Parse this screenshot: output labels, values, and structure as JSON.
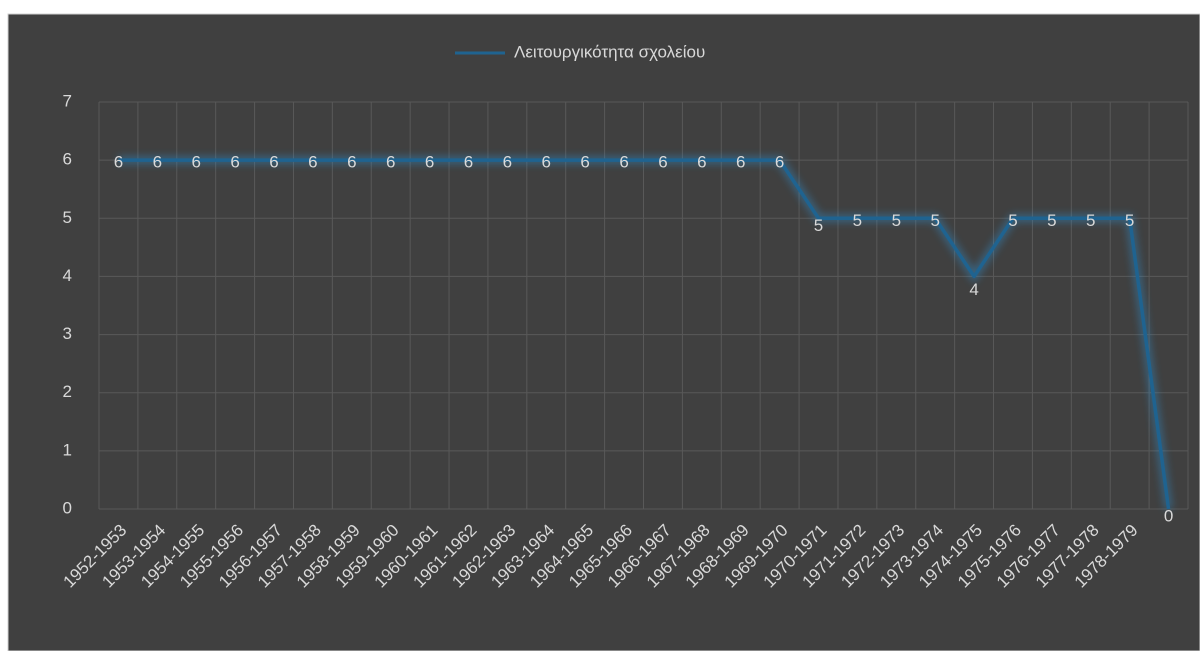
{
  "chart_data": {
    "type": "line",
    "categories": [
      "1952-1953",
      "1953-1954",
      "1954-1955",
      "1955-1956",
      "1956-1957",
      "1957-1958",
      "1958-1959",
      "1959-1960",
      "1960-1961",
      "1961-1962",
      "1962-1963",
      "1963-1964",
      "1964-1965",
      "1965-1966",
      "1966-1967",
      "1967-1968",
      "1968-1969",
      "1969-1970",
      "1970-1971",
      "1971-1972",
      "1972-1973",
      "1973-1974",
      "1974-1975",
      "1975-1976",
      "1976-1977",
      "1977-1978",
      "1978-1979",
      null
    ],
    "series": [
      {
        "name": "Λειτουργικότητα σχολείου",
        "color": "#1f6390",
        "values": [
          6,
          6,
          6,
          6,
          6,
          6,
          6,
          6,
          6,
          6,
          6,
          6,
          6,
          6,
          6,
          6,
          6,
          6,
          5,
          5,
          5,
          5,
          4,
          5,
          5,
          5,
          5,
          0
        ]
      }
    ],
    "ylim": [
      0,
      7
    ],
    "yticks": [
      0,
      1,
      2,
      3,
      4,
      5,
      6,
      7
    ],
    "grid": true,
    "legend": "top"
  }
}
